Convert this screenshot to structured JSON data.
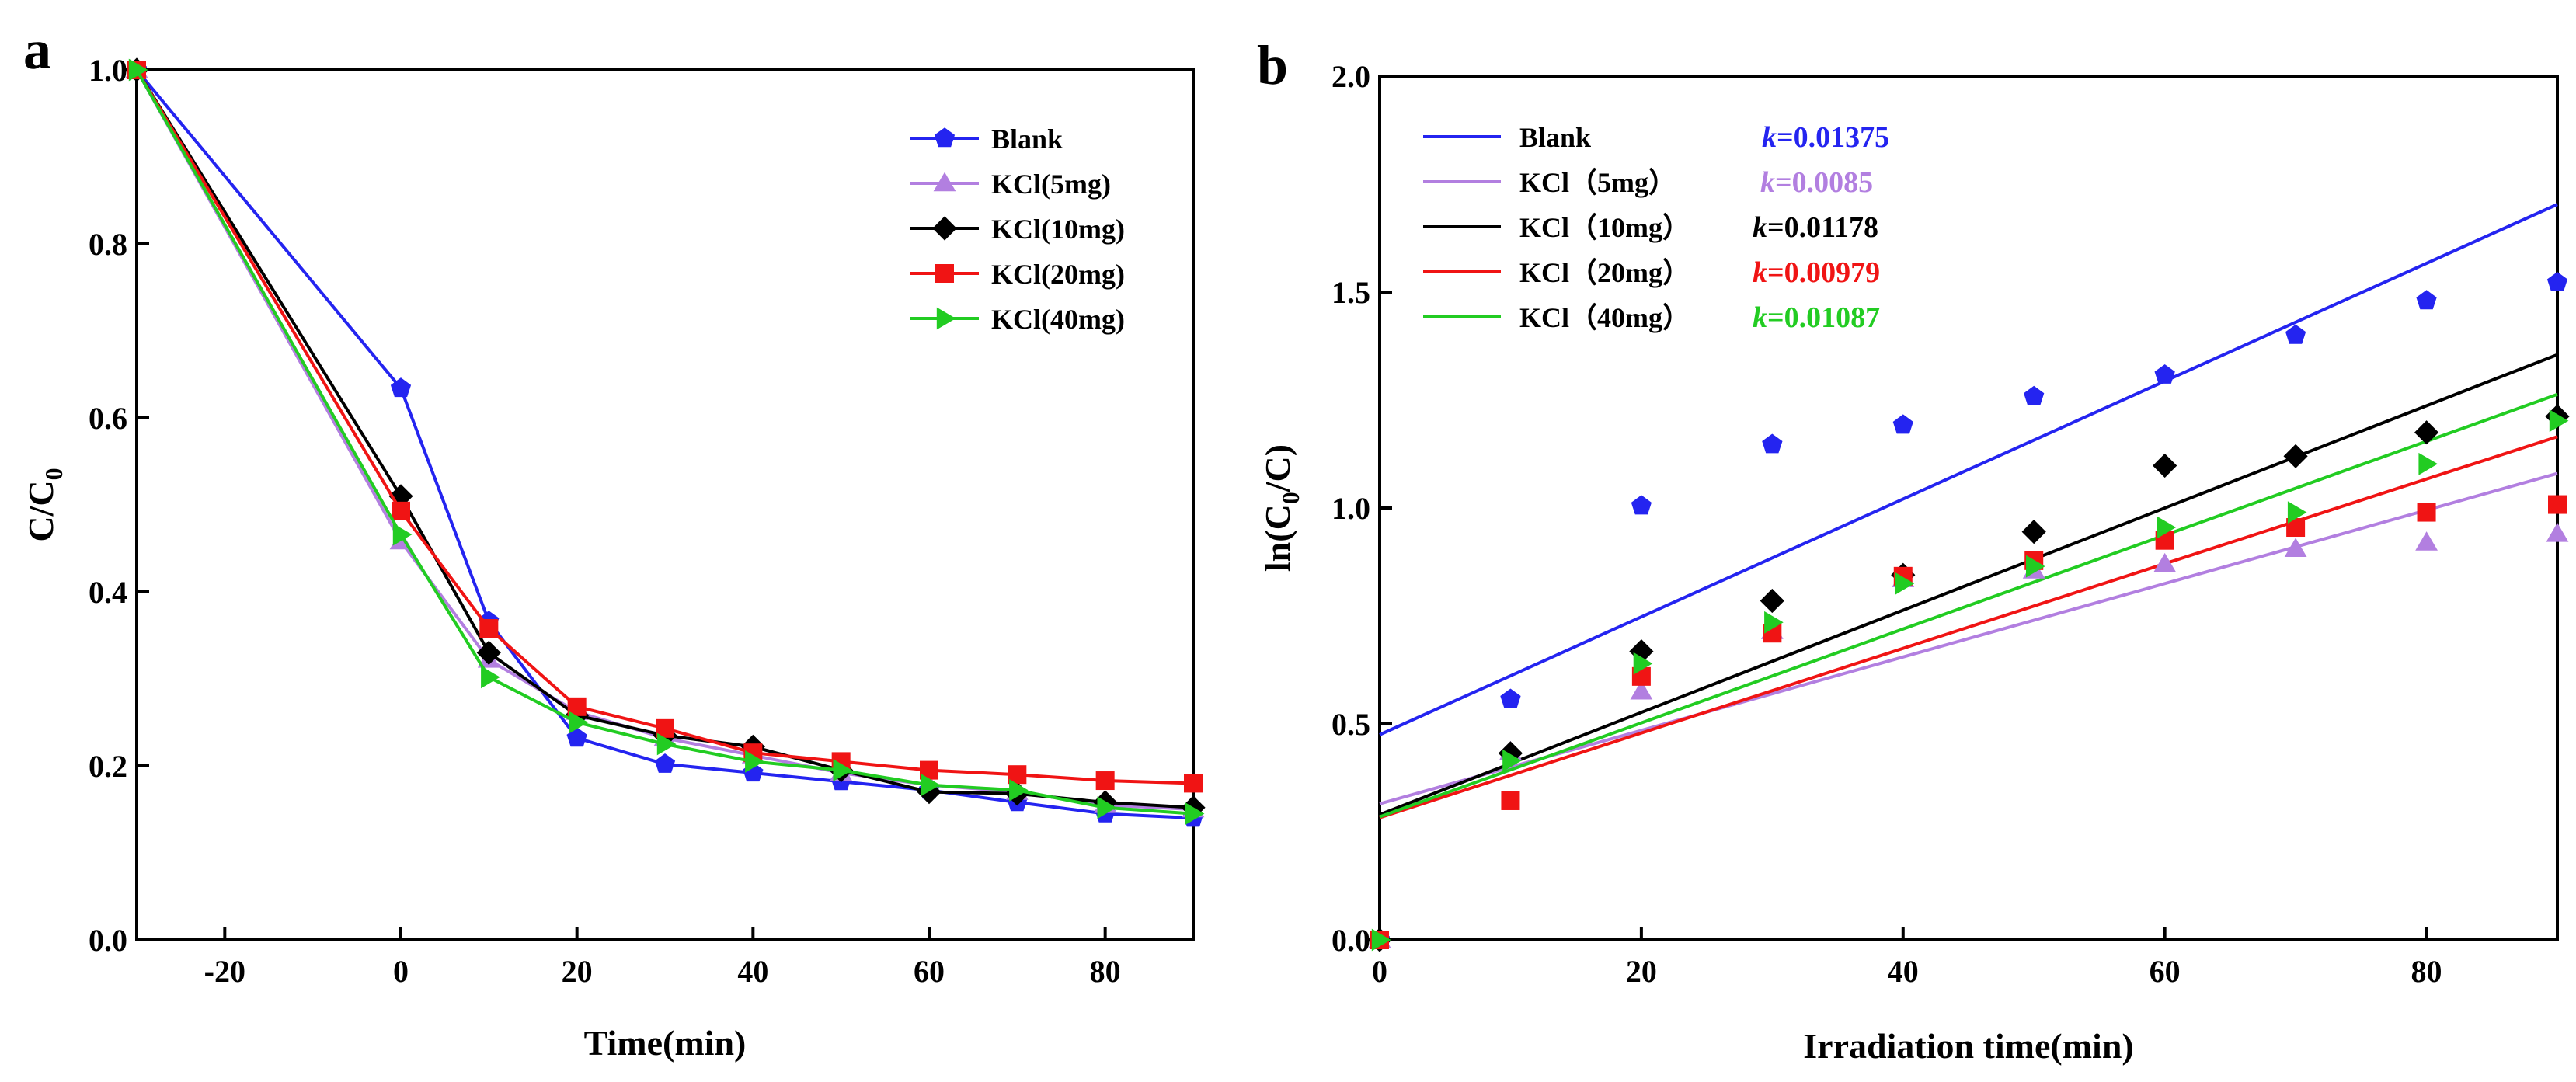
{
  "chart_data": [
    {
      "type": "line",
      "panel_label": "a",
      "title": "",
      "xlabel": "Time(min)",
      "ylabel": "C/C",
      "ylabel_sub": "0",
      "xlim": [
        -30,
        90
      ],
      "ylim": [
        0.0,
        1.0
      ],
      "xticks": [
        -20,
        0,
        20,
        40,
        60,
        80
      ],
      "xtick_labels": [
        "-20",
        "0",
        "20",
        "40",
        "60",
        "80"
      ],
      "yticks": [
        0.0,
        0.2,
        0.4,
        0.6,
        0.8,
        1.0
      ],
      "ytick_labels": [
        "0.0",
        "0.2",
        "0.4",
        "0.6",
        "0.8",
        "1.0"
      ],
      "grid": false,
      "legend_position": "top-right",
      "x": [
        -30,
        0,
        10,
        20,
        30,
        40,
        50,
        60,
        70,
        80,
        90
      ],
      "series": [
        {
          "name": "Blank",
          "color": "#2424f0",
          "marker": "pentagon",
          "values": [
            1.0,
            0.634,
            0.366,
            0.232,
            0.202,
            0.192,
            0.182,
            0.172,
            0.158,
            0.145,
            0.14
          ]
        },
        {
          "name": "KCl(5mg)",
          "color": "#b27fe0",
          "marker": "triangle-up",
          "values": [
            1.0,
            0.458,
            0.322,
            0.262,
            0.232,
            0.212,
            0.192,
            0.178,
            0.17,
            0.155,
            0.15
          ]
        },
        {
          "name": "KCl(10mg)",
          "color": "#000000",
          "marker": "diamond",
          "values": [
            1.0,
            0.51,
            0.33,
            0.258,
            0.235,
            0.222,
            0.195,
            0.17,
            0.168,
            0.158,
            0.152
          ]
        },
        {
          "name": "KCl(20mg)",
          "color": "#f01414",
          "marker": "square",
          "values": [
            1.0,
            0.493,
            0.358,
            0.268,
            0.243,
            0.215,
            0.205,
            0.195,
            0.19,
            0.183,
            0.18
          ]
        },
        {
          "name": "KCl(40mg)",
          "color": "#22cc22",
          "marker": "triangle-right",
          "values": [
            1.0,
            0.466,
            0.302,
            0.25,
            0.225,
            0.205,
            0.195,
            0.178,
            0.172,
            0.152,
            0.145
          ]
        }
      ]
    },
    {
      "type": "scatter",
      "panel_label": "b",
      "title": "",
      "xlabel": "Irradiation time(min)",
      "ylabel": "ln(C",
      "ylabel_sub": "0",
      "ylabel_tail": "/C)",
      "xlim": [
        0,
        90
      ],
      "ylim": [
        0.0,
        2.0
      ],
      "xticks": [
        0,
        20,
        40,
        60,
        80
      ],
      "xtick_labels": [
        "0",
        "20",
        "40",
        "60",
        "80"
      ],
      "yticks": [
        0.0,
        0.5,
        1.0,
        1.5,
        2.0
      ],
      "ytick_labels": [
        "0.0",
        "0.5",
        "1.0",
        "1.5",
        "2.0"
      ],
      "grid": false,
      "legend_position": "top-left",
      "x": [
        0,
        10,
        20,
        30,
        40,
        50,
        60,
        70,
        80,
        90
      ],
      "series": [
        {
          "name": "Blank",
          "k_prefix": "k",
          "k_text": "=0.01375",
          "color": "#2424f0",
          "marker": "pentagon",
          "values": [
            0.0,
            0.557,
            1.005,
            1.147,
            1.192,
            1.258,
            1.308,
            1.4,
            1.48,
            1.522
          ],
          "fit": [
            0.475,
            1.703
          ]
        },
        {
          "name": "KCl（5mg）",
          "k_prefix": "k",
          "k_text": "=0.0085",
          "color": "#b27fe0",
          "marker": "triangle-up",
          "values": [
            0.0,
            0.435,
            0.575,
            0.715,
            0.835,
            0.855,
            0.87,
            0.905,
            0.92,
            0.94
          ],
          "fit": [
            0.315,
            1.08
          ]
        },
        {
          "name": "KCl（10mg）",
          "k_prefix": "k",
          "k_text": "=0.01178",
          "color": "#000000",
          "marker": "diamond",
          "values": [
            0.0,
            0.432,
            0.668,
            0.785,
            0.845,
            0.945,
            1.098,
            1.12,
            1.175,
            1.212
          ],
          "fit": [
            0.29,
            1.355
          ]
        },
        {
          "name": "KCl（20mg）",
          "k_prefix": "k",
          "k_text": "=0.00979",
          "color": "#f01414",
          "marker": "square",
          "values": [
            0.0,
            0.322,
            0.61,
            0.71,
            0.842,
            0.878,
            0.925,
            0.955,
            0.99,
            1.008
          ],
          "fit": [
            0.283,
            1.165
          ]
        },
        {
          "name": "KCl（40mg）",
          "k_prefix": "k",
          "k_text": "=0.01087",
          "color": "#22cc22",
          "marker": "triangle-right",
          "values": [
            0.0,
            0.415,
            0.64,
            0.735,
            0.825,
            0.865,
            0.955,
            0.99,
            1.102,
            1.202
          ],
          "fit": [
            0.285,
            1.263
          ]
        }
      ]
    }
  ]
}
